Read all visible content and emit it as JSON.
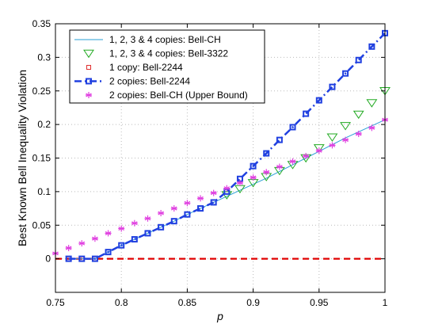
{
  "chart_data": {
    "type": "line",
    "xlabel": "p",
    "ylabel": "Best Known Bell Inequality Violation",
    "xlim": [
      0.75,
      1.0
    ],
    "ylim": [
      -0.05,
      0.35
    ],
    "xticks": [
      "0.75",
      "0.8",
      "0.85",
      "0.9",
      "0.95",
      "1"
    ],
    "yticks": [
      "0",
      "0.05",
      "0.1",
      "0.15",
      "0.2",
      "0.25",
      "0.3",
      "0.35"
    ],
    "grid": true,
    "legend_position": "top-left",
    "series": [
      {
        "name": "1, 2, 3 & 4 copies: Bell-CH",
        "color": "#2a9fd6",
        "style": "solid-thin",
        "x": [
          0.76,
          0.77,
          0.78,
          0.79,
          0.8,
          0.81,
          0.82,
          0.83,
          0.84,
          0.85,
          0.86,
          0.87,
          0.88,
          0.89,
          0.9,
          0.91,
          0.92,
          0.93,
          0.94,
          0.95,
          0.96,
          0.97,
          0.98,
          0.99,
          1.0
        ],
        "y": [
          0.0,
          0.0,
          0.0,
          0.01,
          0.02,
          0.029,
          0.038,
          0.047,
          0.056,
          0.066,
          0.075,
          0.084,
          0.093,
          0.102,
          0.111,
          0.12,
          0.13,
          0.14,
          0.15,
          0.16,
          0.17,
          0.18,
          0.189,
          0.198,
          0.207
        ]
      },
      {
        "name": "1, 2, 3 & 4 copies: Bell-3322",
        "color": "#22aa22",
        "style": "triangle-down",
        "x": [
          0.88,
          0.89,
          0.9,
          0.91,
          0.92,
          0.93,
          0.94,
          0.95,
          0.96,
          0.97,
          0.98,
          0.99,
          1.0
        ],
        "y": [
          0.095,
          0.104,
          0.113,
          0.122,
          0.131,
          0.14,
          0.15,
          0.165,
          0.181,
          0.198,
          0.215,
          0.232,
          0.25
        ]
      },
      {
        "name": "1 copy: Bell-2244",
        "color": "#e03030",
        "style": "square-small",
        "x": [
          0.76,
          0.77,
          0.78
        ],
        "y": [
          0.0,
          0.0,
          0.0
        ]
      },
      {
        "name": "2 copies: Bell-2244",
        "color": "#2040e0",
        "style": "square-dashdot",
        "x": [
          0.76,
          0.77,
          0.78,
          0.79,
          0.8,
          0.81,
          0.82,
          0.83,
          0.84,
          0.85,
          0.86,
          0.87,
          0.88,
          0.89,
          0.9,
          0.91,
          0.92,
          0.93,
          0.94,
          0.95,
          0.96,
          0.97,
          0.98,
          0.99,
          1.0
        ],
        "y": [
          0.0,
          0.0,
          0.0,
          0.01,
          0.02,
          0.029,
          0.038,
          0.047,
          0.056,
          0.066,
          0.075,
          0.084,
          0.1,
          0.119,
          0.138,
          0.157,
          0.177,
          0.196,
          0.216,
          0.236,
          0.256,
          0.276,
          0.296,
          0.316,
          0.336
        ]
      },
      {
        "name": "2 copies: Bell-CH (Upper Bound)",
        "color": "#e040e0",
        "style": "asterisk",
        "x": [
          0.75,
          0.76,
          0.77,
          0.78,
          0.79,
          0.8,
          0.81,
          0.82,
          0.83,
          0.84,
          0.85,
          0.86,
          0.87,
          0.88,
          0.89,
          0.9,
          0.91,
          0.92,
          0.93,
          0.94,
          0.95,
          0.96,
          0.97,
          0.98,
          0.99,
          1.0
        ],
        "y": [
          0.008,
          0.016,
          0.023,
          0.03,
          0.038,
          0.045,
          0.053,
          0.06,
          0.068,
          0.075,
          0.083,
          0.09,
          0.098,
          0.105,
          0.113,
          0.121,
          0.129,
          0.137,
          0.145,
          0.153,
          0.161,
          0.169,
          0.177,
          0.186,
          0.195,
          0.207
        ]
      }
    ],
    "reference_line": {
      "y": 0,
      "color": "#e00000",
      "style": "dashed"
    }
  }
}
